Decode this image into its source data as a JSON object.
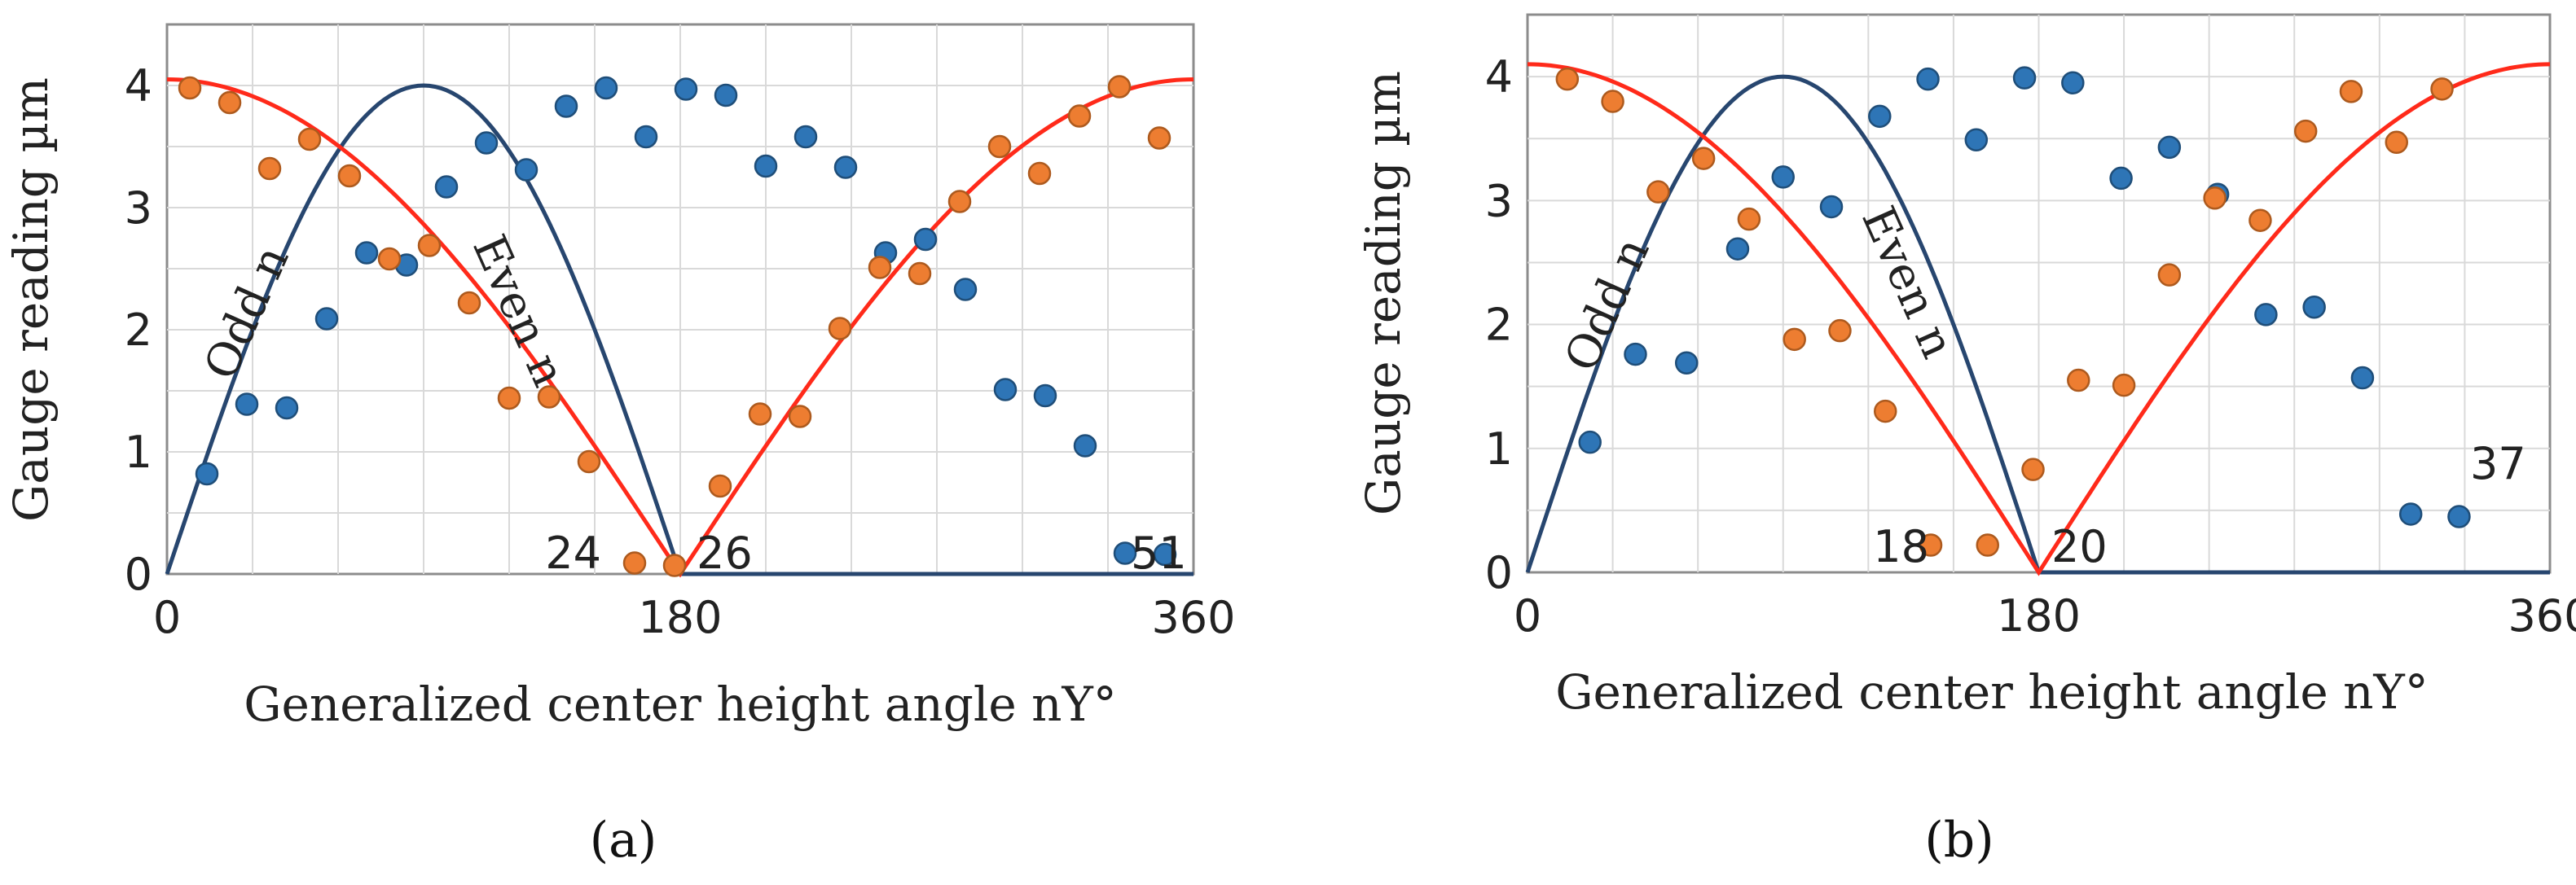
{
  "chart_data": [
    {
      "panel_label": "(a)",
      "type": "scatter",
      "xlabel": "Generalized center height angle nY°",
      "ylabel": "Gauge reading µm",
      "xlim": [
        0,
        360
      ],
      "ylim": [
        0,
        4.5
      ],
      "x_ticks": [
        "0",
        "180",
        "360"
      ],
      "y_ticks": [
        "0",
        "1",
        "2",
        "3",
        "4"
      ],
      "grid": true,
      "legend": "none",
      "curve_labels": [
        "Odd n",
        "Even n"
      ],
      "point_labels": [
        "24",
        "26",
        "51"
      ],
      "colors": {
        "odd": "#2e75b6",
        "even": "#ed7d31",
        "odd_fit": "#27466f",
        "even_fit": "#ff2a1a"
      },
      "series": [
        {
          "key": "odd",
          "points": [
            [
              14,
              0.82
            ],
            [
              28,
              1.39
            ],
            [
              42,
              1.36
            ],
            [
              56,
              2.09
            ],
            [
              70,
              2.63
            ],
            [
              84,
              2.53
            ],
            [
              98,
              3.17
            ],
            [
              112,
              3.53
            ],
            [
              126,
              3.31
            ],
            [
              140,
              3.83
            ],
            [
              154,
              3.98
            ],
            [
              168,
              3.58
            ],
            [
              182,
              3.97
            ],
            [
              196,
              3.92
            ],
            [
              210,
              3.34
            ],
            [
              224,
              3.58
            ],
            [
              238,
              3.33
            ],
            [
              252,
              2.63
            ],
            [
              266,
              2.74
            ],
            [
              280,
              2.33
            ],
            [
              294,
              1.51
            ],
            [
              308,
              1.46
            ],
            [
              322,
              1.05
            ],
            [
              336,
              0.17
            ],
            [
              350,
              0.16
            ]
          ]
        },
        {
          "key": "even",
          "points": [
            [
              8,
              3.98
            ],
            [
              22,
              3.86
            ],
            [
              36,
              3.32
            ],
            [
              50,
              3.56
            ],
            [
              64,
              3.26
            ],
            [
              78,
              2.58
            ],
            [
              92,
              2.69
            ],
            [
              106,
              2.22
            ],
            [
              120,
              1.44
            ],
            [
              134,
              1.45
            ],
            [
              148,
              0.92
            ],
            [
              164,
              0.09
            ],
            [
              178,
              0.07
            ],
            [
              194,
              0.72
            ],
            [
              208,
              1.31
            ],
            [
              222,
              1.29
            ],
            [
              236,
              2.01
            ],
            [
              250,
              2.51
            ],
            [
              264,
              2.46
            ],
            [
              278,
              3.05
            ],
            [
              292,
              3.5
            ],
            [
              306,
              3.28
            ],
            [
              320,
              3.75
            ],
            [
              334,
              3.99
            ],
            [
              348,
              3.57
            ]
          ]
        },
        {
          "key": "odd_fit",
          "model": "4*sin(x)"
        },
        {
          "key": "even_fit",
          "model": "4.05*|cos(x/2)|"
        }
      ]
    },
    {
      "panel_label": "(b)",
      "type": "scatter",
      "xlabel": "Generalized center height angle nY°",
      "ylabel": "Gauge reading µm",
      "xlim": [
        0,
        360
      ],
      "ylim": [
        0,
        4.5
      ],
      "x_ticks": [
        "0",
        "180",
        "360"
      ],
      "y_ticks": [
        "0",
        "1",
        "2",
        "3",
        "4"
      ],
      "grid": true,
      "legend": "none",
      "curve_labels": [
        "Odd n",
        "Even n"
      ],
      "point_labels": [
        "18",
        "20",
        "37"
      ],
      "colors": {
        "odd": "#2e75b6",
        "even": "#ed7d31",
        "odd_fit": "#27466f",
        "even_fit": "#ff2a1a"
      },
      "series": [
        {
          "key": "odd",
          "points": [
            [
              22,
              1.05
            ],
            [
              38,
              1.76
            ],
            [
              56,
              1.69
            ],
            [
              74,
              2.61
            ],
            [
              90,
              3.19
            ],
            [
              107,
              2.95
            ],
            [
              124,
              3.68
            ],
            [
              141,
              3.98
            ],
            [
              158,
              3.49
            ],
            [
              175,
              3.99
            ],
            [
              192,
              3.95
            ],
            [
              209,
              3.18
            ],
            [
              226,
              3.43
            ],
            [
              243,
              3.05
            ],
            [
              260,
              2.08
            ],
            [
              277,
              2.14
            ],
            [
              294,
              1.57
            ],
            [
              311,
              0.47
            ],
            [
              328,
              0.45
            ]
          ]
        },
        {
          "key": "even",
          "points": [
            [
              14,
              3.98
            ],
            [
              30,
              3.8
            ],
            [
              46,
              3.07
            ],
            [
              62,
              3.34
            ],
            [
              78,
              2.85
            ],
            [
              94,
              1.88
            ],
            [
              110,
              1.95
            ],
            [
              126,
              1.3
            ],
            [
              142,
              0.22
            ],
            [
              162,
              0.22
            ],
            [
              178,
              0.83
            ],
            [
              194,
              1.55
            ],
            [
              210,
              1.51
            ],
            [
              226,
              2.4
            ],
            [
              242,
              3.02
            ],
            [
              258,
              2.84
            ],
            [
              274,
              3.56
            ],
            [
              290,
              3.88
            ],
            [
              306,
              3.47
            ],
            [
              322,
              3.9
            ]
          ]
        },
        {
          "key": "odd_fit",
          "model": "4*sin(x)"
        },
        {
          "key": "even_fit",
          "model": "4.1*|cos(x/2)|"
        }
      ]
    }
  ]
}
